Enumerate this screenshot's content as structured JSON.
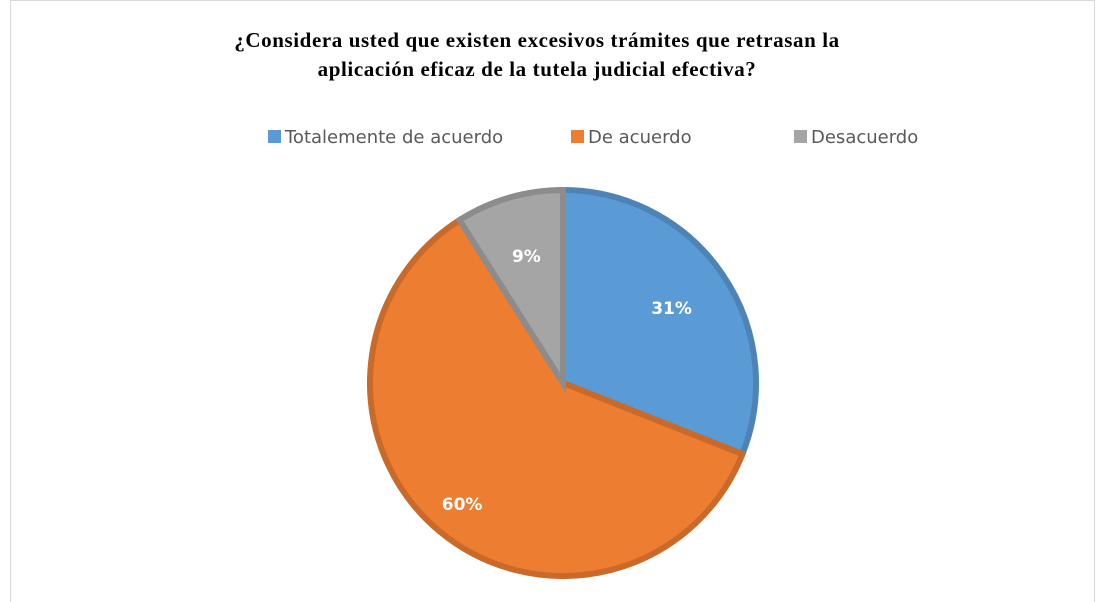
{
  "chart_data": {
    "type": "pie",
    "title": [
      "¿Considera usted que existen excesivos trámites que retrasan la",
      "aplicación eficaz de la tutela judicial efectiva?"
    ],
    "categories": [
      "Totalemente de acuerdo",
      "De acuerdo",
      "Desacuerdo"
    ],
    "values": [
      31,
      60,
      9
    ],
    "value_labels": [
      "31%",
      "60%",
      "9%"
    ],
    "colors": [
      "#5b9bd5",
      "#ed7d31",
      "#a5a5a5"
    ],
    "legend": "top"
  }
}
